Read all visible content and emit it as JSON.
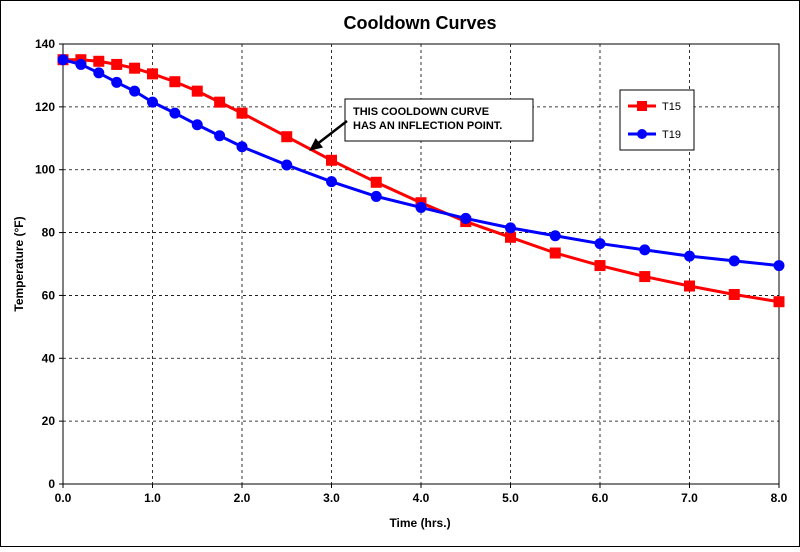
{
  "chart_data": {
    "type": "line",
    "title": "Cooldown Curves",
    "xlabel": "Time (hrs.)",
    "ylabel": "Temperature (°F)",
    "xlim": [
      0,
      8
    ],
    "ylim": [
      0,
      140
    ],
    "x_ticks": [
      "0.0",
      "1.0",
      "2.0",
      "3.0",
      "4.0",
      "5.0",
      "6.0",
      "7.0",
      "8.0"
    ],
    "y_ticks": [
      "0",
      "20",
      "40",
      "60",
      "80",
      "100",
      "120",
      "140"
    ],
    "grid": true,
    "legend_position": "top-right",
    "series": [
      {
        "name": "T15",
        "color": "#ff0000",
        "marker": "square",
        "x": [
          0,
          0.2,
          0.4,
          0.6,
          0.8,
          1.0,
          1.25,
          1.5,
          1.75,
          2.0,
          2.5,
          3.0,
          3.5,
          4.0,
          4.5,
          5.0,
          5.5,
          6.0,
          6.5,
          7.0,
          7.5,
          8.0
        ],
        "y": [
          135,
          135,
          134.5,
          133.5,
          132.3,
          130.5,
          128,
          125,
          121.5,
          118,
          110.5,
          103,
          96,
          89.5,
          83.5,
          78.5,
          73.5,
          69.5,
          66,
          63,
          60.3,
          58
        ]
      },
      {
        "name": "T19",
        "color": "#0000ff",
        "marker": "circle",
        "x": [
          0,
          0.2,
          0.4,
          0.6,
          0.8,
          1.0,
          1.25,
          1.5,
          1.75,
          2.0,
          2.5,
          3.0,
          3.5,
          4.0,
          4.5,
          5.0,
          5.5,
          6.0,
          6.5,
          7.0,
          7.5,
          8.0
        ],
        "y": [
          135,
          133.5,
          130.8,
          127.8,
          125,
          121.5,
          118,
          114.3,
          110.8,
          107.3,
          101.5,
          96.2,
          91.5,
          88,
          84.5,
          81.5,
          79,
          76.5,
          74.5,
          72.5,
          71,
          69.5
        ]
      }
    ],
    "annotation": {
      "lines": [
        "THIS COOLDOWN CURVE",
        "HAS AN INFLECTION POINT."
      ],
      "arrow_target": {
        "x": 2.75,
        "y": 106
      }
    }
  }
}
